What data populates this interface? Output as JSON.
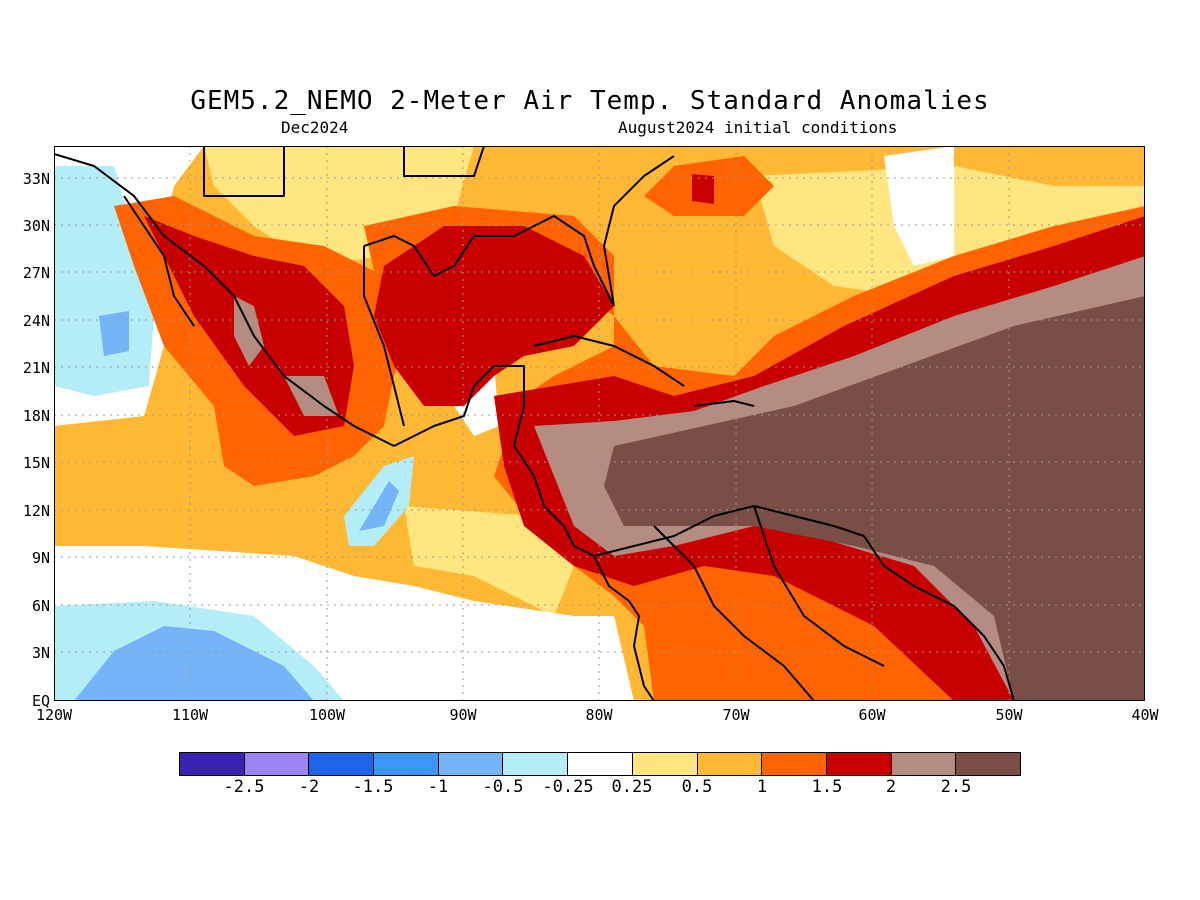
{
  "title": "GEM5.2_NEMO 2-Meter Air Temp. Standard Anomalies",
  "subtitle_left": "Dec2024",
  "subtitle_right": "August2024 initial conditions",
  "lat_labels": [
    "33N",
    "30N",
    "27N",
    "24N",
    "21N",
    "18N",
    "15N",
    "12N",
    "9N",
    "6N",
    "3N",
    "EQ"
  ],
  "lon_labels": [
    "120W",
    "110W",
    "100W",
    "90W",
    "80W",
    "70W",
    "60W",
    "50W",
    "40W"
  ],
  "legend": {
    "colors": [
      "#3b22b0",
      "#9b83f4",
      "#1e64e6",
      "#3c96f6",
      "#74b4f7",
      "#b4ecf8",
      "#ffffff",
      "#ffe680",
      "#ffb833",
      "#ff6400",
      "#c80000",
      "#b48c82",
      "#784e46"
    ],
    "ticks": [
      "-2.5",
      "-2",
      "-1.5",
      "-1",
      "-0.5",
      "-0.25",
      "0.25",
      "0.5",
      "1",
      "1.5",
      "2",
      "2.5"
    ]
  },
  "colors": {
    "very_warm": "#784e46",
    "warm_2": "#b48c82",
    "warm_15": "#c80000",
    "warm_1": "#ff6400",
    "warm_05": "#ffb833",
    "warm_025": "#ffe680",
    "neutral": "#ffffff",
    "cool_025": "#b4ecf8",
    "cool_05": "#74b4f7"
  }
}
